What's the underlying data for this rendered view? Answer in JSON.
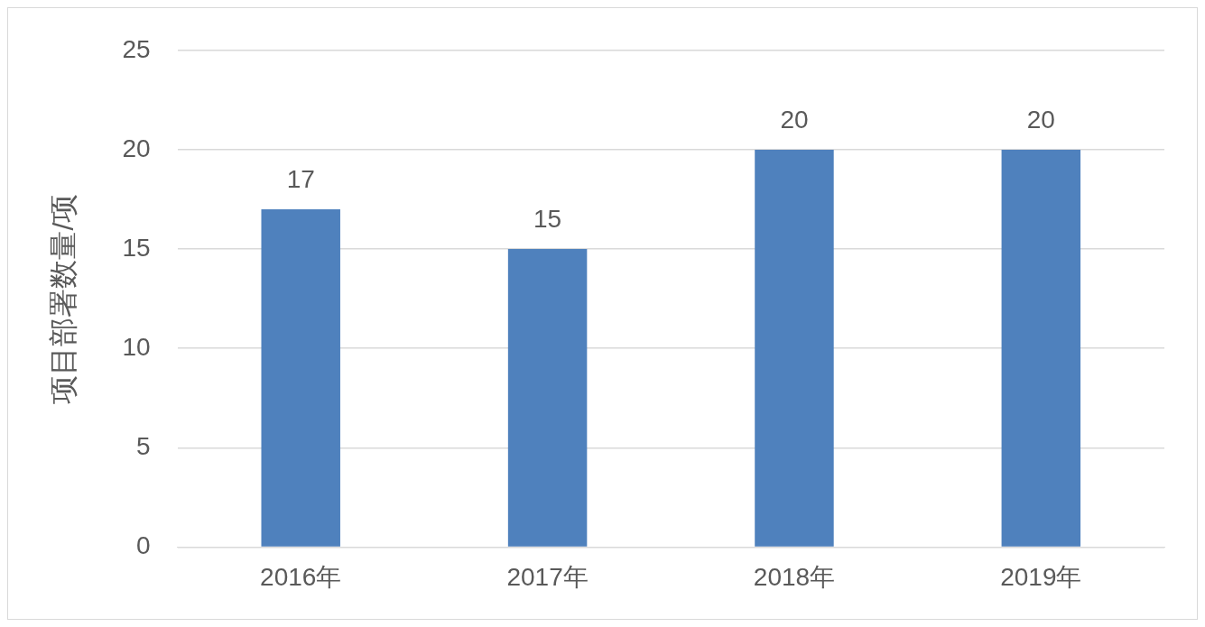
{
  "chart_data": {
    "type": "bar",
    "ylabel": "项目部署数量/项",
    "categories": [
      "2016年",
      "2017年",
      "2018年",
      "2019年"
    ],
    "values": [
      17,
      15,
      20,
      20
    ],
    "color": "#4f81bd",
    "ylim": [
      0,
      25
    ],
    "yticks": [
      0,
      5,
      10,
      15,
      20,
      25
    ],
    "grid": "y",
    "legend": false,
    "data_labels": true
  }
}
